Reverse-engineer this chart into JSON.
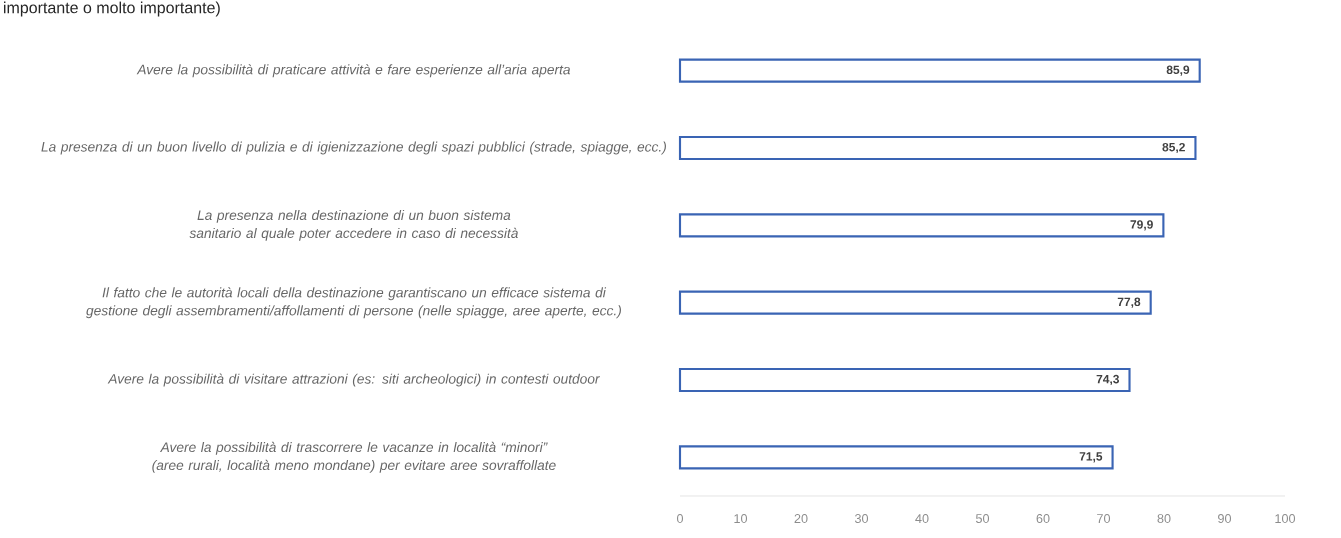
{
  "chart_data": {
    "type": "bar",
    "orientation": "horizontal",
    "title": "importante o molto importante)",
    "categories": [
      "Avere la possibilità di praticare attività e fare esperienze all’aria aperta",
      "La presenza di un buon livello di pulizia e di igienizzazione degli spazi pubblici (strade, spiagge, ecc.)",
      "La presenza nella destinazione di un buon sistema sanitario al quale poter accedere in caso di necessità",
      "Il fatto che le autorità locali della destinazione garantiscano un efficace sistema di gestione degli assembramenti/affollamenti di persone (nelle spiagge, aree aperte, ecc.)",
      "Avere la possibilità di visitare attrazioni (es: siti archeologici) in contesti outdoor",
      "Avere la possibilità di trascorrere le vacanze in località “minori” (aree rurali, località meno mondane) per evitare aree sovraffollate"
    ],
    "values": [
      85.9,
      85.2,
      79.9,
      77.8,
      74.3,
      71.5
    ],
    "color": "#3a64b4",
    "value_labels": [
      "85,9",
      "85,2",
      "79,9",
      "77,8",
      "74,3",
      "71,5"
    ],
    "xlim": [
      0,
      100
    ],
    "xticks": [
      0,
      10,
      20,
      30,
      40,
      50,
      60,
      70,
      80,
      90,
      100
    ]
  }
}
